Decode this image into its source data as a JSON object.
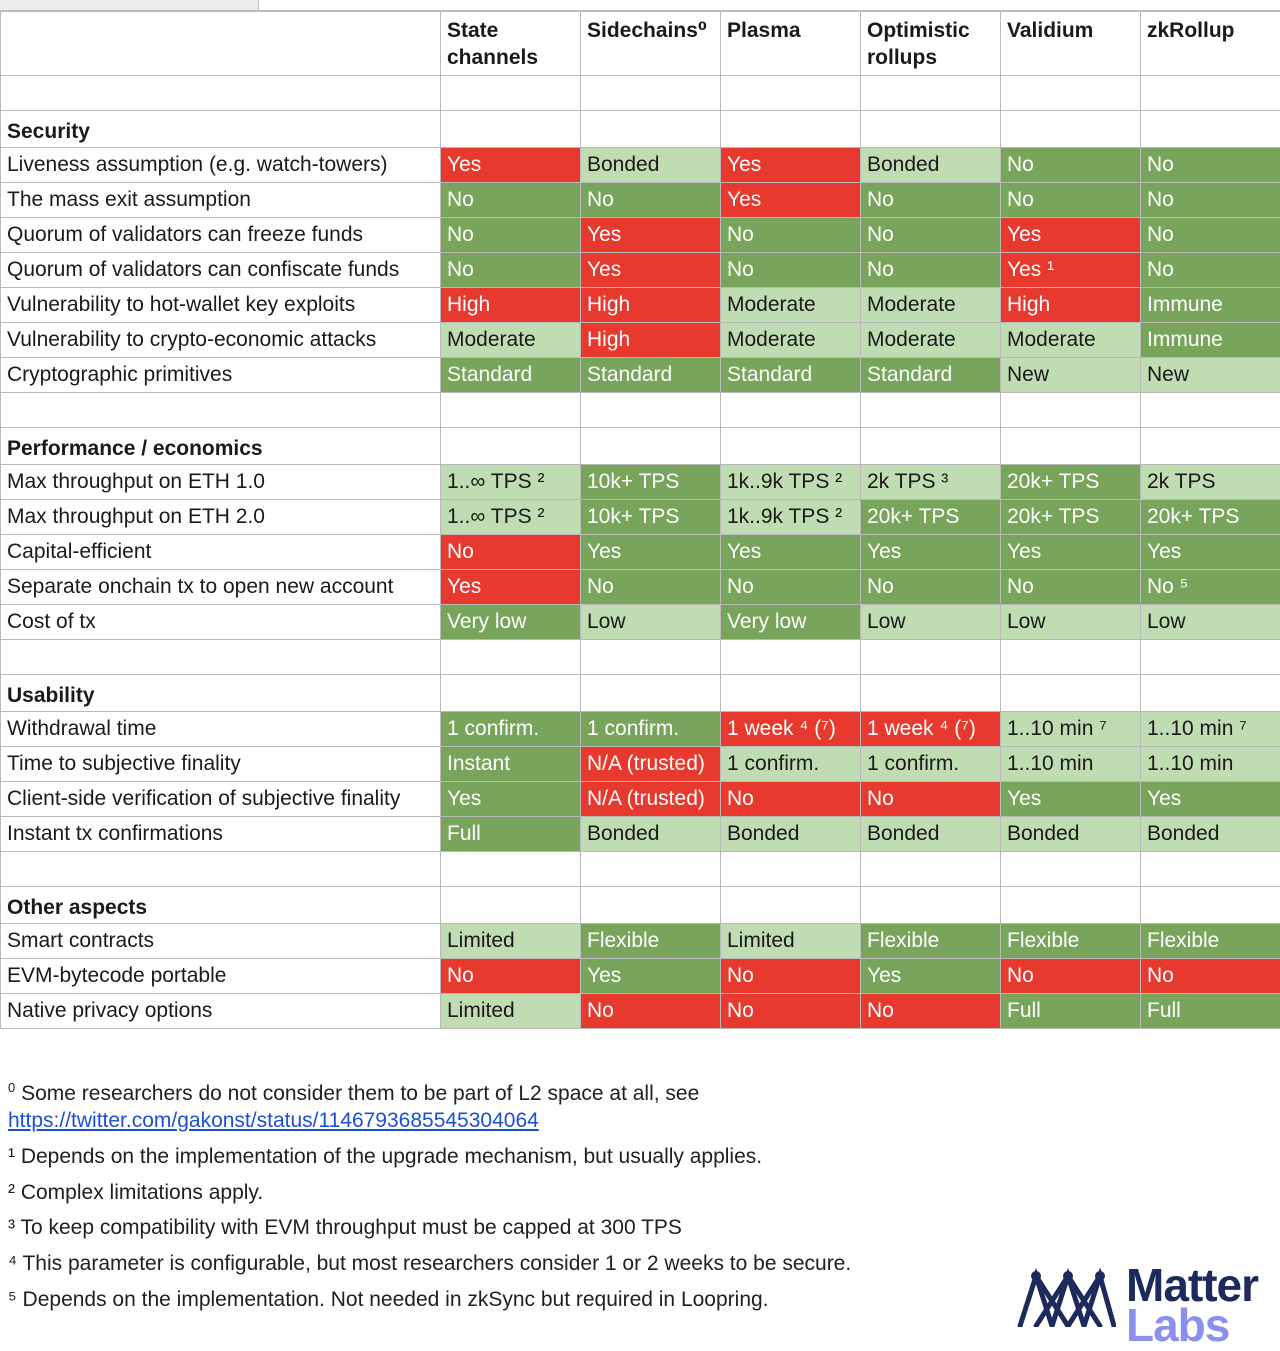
{
  "columns": [
    {
      "label": "State channels"
    },
    {
      "label": "Sidechains⁰"
    },
    {
      "label": "Plasma"
    },
    {
      "label": "Optimistic rollups"
    },
    {
      "label": "Validium"
    },
    {
      "label": "zkRollup"
    }
  ],
  "sections": [
    {
      "title": "Security",
      "rows": [
        {
          "label": "Liveness assumption (e.g. watch-towers)",
          "cells": [
            [
              "Yes",
              "r"
            ],
            [
              "Bonded",
              "l"
            ],
            [
              "Yes",
              "r"
            ],
            [
              "Bonded",
              "l"
            ],
            [
              "No",
              "g"
            ],
            [
              "No",
              "g"
            ]
          ]
        },
        {
          "label": "The mass exit assumption",
          "cells": [
            [
              "No",
              "g"
            ],
            [
              "No",
              "g"
            ],
            [
              "Yes",
              "r"
            ],
            [
              "No",
              "g"
            ],
            [
              "No",
              "g"
            ],
            [
              "No",
              "g"
            ]
          ]
        },
        {
          "label": "Quorum of validators can freeze funds",
          "cells": [
            [
              "No",
              "g"
            ],
            [
              "Yes",
              "r"
            ],
            [
              "No",
              "g"
            ],
            [
              "No",
              "g"
            ],
            [
              "Yes",
              "r"
            ],
            [
              "No",
              "g"
            ]
          ]
        },
        {
          "label": "Quorum of validators can confiscate funds",
          "cells": [
            [
              "No",
              "g"
            ],
            [
              "Yes",
              "r"
            ],
            [
              "No",
              "g"
            ],
            [
              "No",
              "g"
            ],
            [
              "Yes ¹",
              "r"
            ],
            [
              "No",
              "g"
            ]
          ]
        },
        {
          "label": "Vulnerability to hot-wallet key exploits",
          "cells": [
            [
              "High",
              "r"
            ],
            [
              "High",
              "r"
            ],
            [
              "Moderate",
              "l"
            ],
            [
              "Moderate",
              "l"
            ],
            [
              "High",
              "r"
            ],
            [
              "Immune",
              "g"
            ]
          ]
        },
        {
          "label": "Vulnerability to crypto-economic attacks",
          "cells": [
            [
              "Moderate",
              "l"
            ],
            [
              "High",
              "r"
            ],
            [
              "Moderate",
              "l"
            ],
            [
              "Moderate",
              "l"
            ],
            [
              "Moderate",
              "l"
            ],
            [
              "Immune",
              "g"
            ]
          ]
        },
        {
          "label": "Cryptographic primitives",
          "cells": [
            [
              "Standard",
              "g"
            ],
            [
              "Standard",
              "g"
            ],
            [
              "Standard",
              "g"
            ],
            [
              "Standard",
              "g"
            ],
            [
              "New",
              "l"
            ],
            [
              "New",
              "l"
            ]
          ]
        }
      ]
    },
    {
      "title": "Performance / economics",
      "rows": [
        {
          "label": "Max throughput on ETH 1.0",
          "cells": [
            [
              "1..∞ TPS ²",
              "l"
            ],
            [
              "10k+ TPS",
              "g"
            ],
            [
              "1k..9k TPS ²",
              "l"
            ],
            [
              "2k TPS ³",
              "l"
            ],
            [
              "20k+ TPS",
              "g"
            ],
            [
              "2k TPS",
              "l"
            ]
          ]
        },
        {
          "label": "Max throughput on ETH 2.0",
          "cells": [
            [
              "1..∞ TPS ²",
              "l"
            ],
            [
              "10k+ TPS",
              "g"
            ],
            [
              "1k..9k TPS ²",
              "l"
            ],
            [
              "20k+ TPS",
              "g"
            ],
            [
              "20k+ TPS",
              "g"
            ],
            [
              "20k+ TPS",
              "g"
            ]
          ]
        },
        {
          "label": "Capital-efficient",
          "cells": [
            [
              "No",
              "r"
            ],
            [
              "Yes",
              "g"
            ],
            [
              "Yes",
              "g"
            ],
            [
              "Yes",
              "g"
            ],
            [
              "Yes",
              "g"
            ],
            [
              "Yes",
              "g"
            ]
          ]
        },
        {
          "label": "Separate onchain tx to open new account",
          "cells": [
            [
              "Yes",
              "r"
            ],
            [
              "No",
              "g"
            ],
            [
              "No",
              "g"
            ],
            [
              "No",
              "g"
            ],
            [
              "No",
              "g"
            ],
            [
              "No ⁵",
              "g"
            ]
          ]
        },
        {
          "label": "Cost of tx",
          "cells": [
            [
              "Very low",
              "g"
            ],
            [
              "Low",
              "l"
            ],
            [
              "Very low",
              "g"
            ],
            [
              "Low",
              "l"
            ],
            [
              "Low",
              "l"
            ],
            [
              "Low",
              "l"
            ]
          ]
        }
      ]
    },
    {
      "title": "Usability",
      "rows": [
        {
          "label": "Withdrawal time",
          "cells": [
            [
              "1 confirm.",
              "g"
            ],
            [
              "1 confirm.",
              "g"
            ],
            [
              "1 week ⁴ (⁷)",
              "r"
            ],
            [
              "1 week ⁴ (⁷)",
              "r"
            ],
            [
              "1..10 min ⁷",
              "l"
            ],
            [
              "1..10 min ⁷",
              "l"
            ]
          ]
        },
        {
          "label": "Time to subjective finality",
          "cells": [
            [
              "Instant",
              "g"
            ],
            [
              "N/A (trusted)",
              "r"
            ],
            [
              "1 confirm.",
              "l"
            ],
            [
              "1 confirm.",
              "l"
            ],
            [
              "1..10 min",
              "l"
            ],
            [
              "1..10 min",
              "l"
            ]
          ]
        },
        {
          "label": "Client-side verification of subjective finality",
          "cells": [
            [
              "Yes",
              "g"
            ],
            [
              "N/A (trusted)",
              "r"
            ],
            [
              "No",
              "r"
            ],
            [
              "No",
              "r"
            ],
            [
              "Yes",
              "g"
            ],
            [
              "Yes",
              "g"
            ]
          ]
        },
        {
          "label": "Instant tx confirmations",
          "cells": [
            [
              "Full",
              "g"
            ],
            [
              "Bonded",
              "l"
            ],
            [
              "Bonded",
              "l"
            ],
            [
              "Bonded",
              "l"
            ],
            [
              "Bonded",
              "l"
            ],
            [
              "Bonded",
              "l"
            ]
          ]
        }
      ]
    },
    {
      "title": "Other aspects",
      "rows": [
        {
          "label": "Smart contracts",
          "cells": [
            [
              "Limited",
              "l"
            ],
            [
              "Flexible",
              "g"
            ],
            [
              "Limited",
              "l"
            ],
            [
              "Flexible",
              "g"
            ],
            [
              "Flexible",
              "g"
            ],
            [
              "Flexible",
              "g"
            ]
          ]
        },
        {
          "label": "EVM-bytecode portable",
          "cells": [
            [
              "No",
              "r"
            ],
            [
              "Yes",
              "g"
            ],
            [
              "No",
              "r"
            ],
            [
              "Yes",
              "g"
            ],
            [
              "No",
              "r"
            ],
            [
              "No",
              "r"
            ]
          ]
        },
        {
          "label": "Native privacy options",
          "cells": [
            [
              "Limited",
              "l"
            ],
            [
              "No",
              "r"
            ],
            [
              "No",
              "r"
            ],
            [
              "No",
              "r"
            ],
            [
              "Full",
              "g"
            ],
            [
              "Full",
              "g"
            ]
          ]
        }
      ]
    }
  ],
  "footnotes": {
    "n0_mark": "0",
    "n0_text": "Some researchers do not consider them to be part of L2 space at all, see",
    "n0_link": "https://twitter.com/gakonst/status/1146793685545304064",
    "n1": "¹ Depends on the implementation of the upgrade mechanism, but usually applies.",
    "n2": "² Complex limitations apply.",
    "n3": "³ To keep compatibility with EVM throughput must be capped at 300 TPS",
    "n4": "⁴ This parameter is configurable, but most researchers consider 1 or 2 weeks to be secure.",
    "n5": "⁵ Depends on the implementation. Not needed in zkSync but required in Loopring."
  },
  "logo": {
    "line1": "Matter",
    "line2": "Labs",
    "icon": "matter-labs-logo-icon"
  },
  "colors": {
    "green": "#78a45b",
    "light_green": "#c0dcb2",
    "red": "#e7392e",
    "link": "#1a4fd6",
    "logo_navy": "#1d2a5c",
    "logo_violet": "#8a8ff0"
  }
}
